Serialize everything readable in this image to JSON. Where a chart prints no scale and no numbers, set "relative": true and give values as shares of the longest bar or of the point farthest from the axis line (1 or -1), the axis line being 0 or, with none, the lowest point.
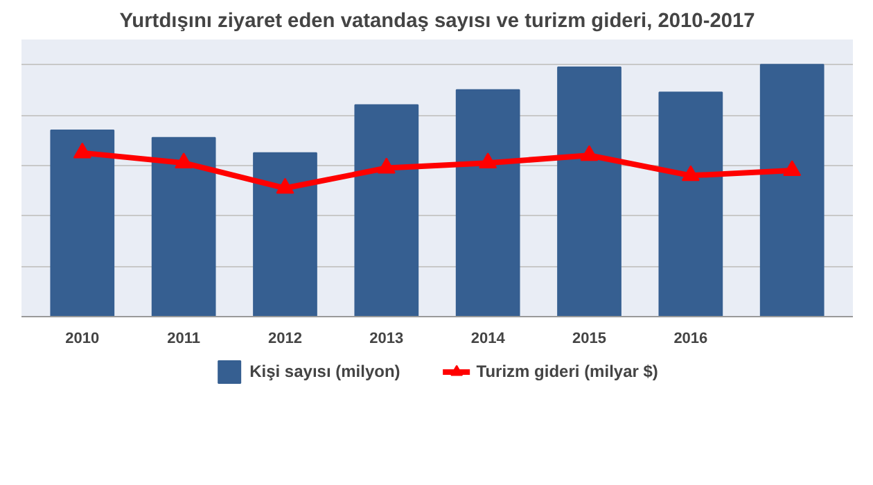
{
  "chart_data": {
    "type": "bar",
    "title": "Yurtdışını ziyaret eden vatandaş sayısı ve turizm gideri, 2010-2017",
    "categories": [
      "2010",
      "2011",
      "2012",
      "2013",
      "2014",
      "2015",
      "2016",
      null
    ],
    "relative": true,
    "grid": "y",
    "legend": "bottom",
    "series": [
      {
        "name": "Kişi sayısı (milyon)",
        "color": "#365f91",
        "values": [
          0.74,
          0.71,
          0.65,
          0.84,
          0.9,
          0.99,
          0.89,
          1
        ]
      },
      {
        "name": "Turizm gideri (milyar $)",
        "type": "line",
        "color": "#ff0000",
        "marker": "triangle",
        "values": [
          0.65,
          0.61,
          0.51,
          0.59,
          0.61,
          0.64,
          0.56,
          0.58
        ]
      }
    ]
  }
}
